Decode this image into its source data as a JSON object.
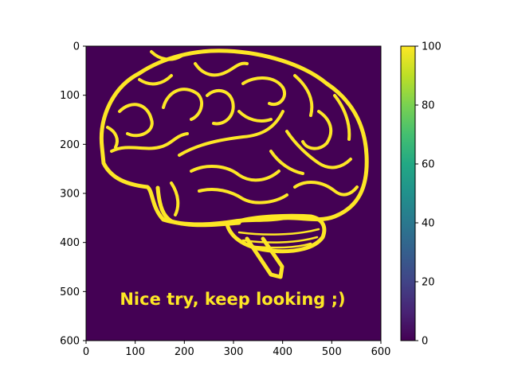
{
  "chart_data": {
    "type": "heatmap",
    "title": "",
    "xlabel": "",
    "ylabel": "",
    "xlim": [
      0,
      600
    ],
    "ylim": [
      600,
      0
    ],
    "xticks": [
      "0",
      "100",
      "200",
      "300",
      "400",
      "500",
      "600"
    ],
    "yticks": [
      "0",
      "100",
      "200",
      "300",
      "400",
      "500",
      "600"
    ],
    "colormap": "viridis",
    "value_range": [
      0,
      100
    ],
    "colorbar_ticks": [
      "0",
      "20",
      "40",
      "60",
      "80",
      "100"
    ],
    "background_value": 0,
    "foreground_value": 100,
    "image_content": "brain outline",
    "annotation": "Nice try, keep looking ;)"
  },
  "colors": {
    "low": "#440154",
    "high": "#fde725"
  }
}
